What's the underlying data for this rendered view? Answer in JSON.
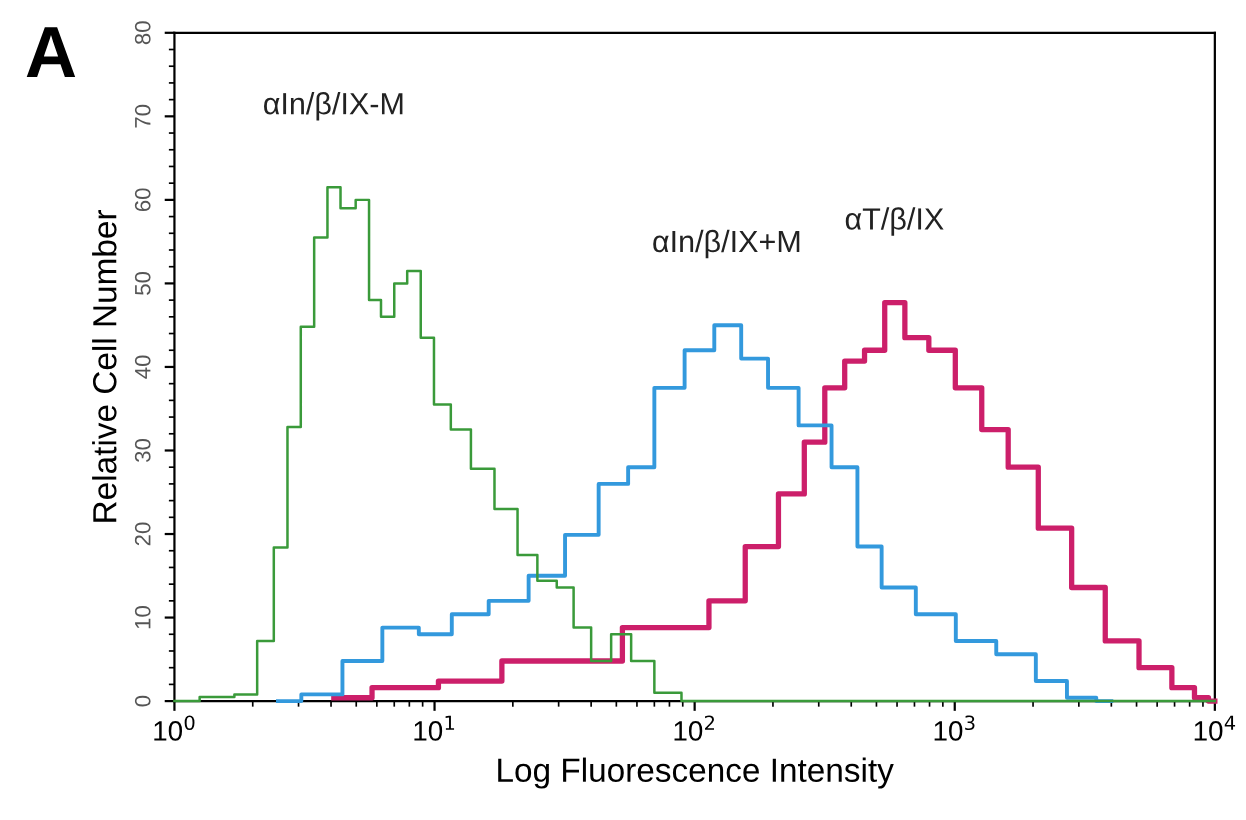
{
  "chart_data": {
    "type": "step",
    "title": "A",
    "xlabel": "Log Fluorescence Intensity",
    "ylabel": "Relative Cell Number",
    "log": "x",
    "xlim": [
      1,
      10000
    ],
    "xticks": [
      {
        "value": 1,
        "label": "10$^{0}$"
      },
      {
        "value": 10,
        "label": "10$^{1}$"
      },
      {
        "value": 100,
        "label": "10$^{2}$"
      },
      {
        "value": 1000,
        "label": "10$^{3}$"
      },
      {
        "value": 10000,
        "label": "10$^{4}$"
      }
    ],
    "ylim": [
      0,
      80
    ],
    "yticks": [
      0,
      10,
      20,
      30,
      40,
      50,
      60,
      70,
      80
    ],
    "grid": false,
    "legend": false,
    "series": [
      {
        "name": "αIn/β/IX-M",
        "color": "#3a9a3a",
        "x": [
          1,
          1.5,
          1.9,
          2.26,
          2.56,
          2.88,
          3.24,
          3.65,
          4.1,
          4.6,
          5.35,
          5.85,
          6.6,
          7.4,
          8.3,
          9.4,
          10.5,
          12.6,
          15,
          19,
          22.7,
          27,
          32,
          36.5,
          43.5,
          52,
          62,
          78,
          100,
          300,
          1000,
          10000
        ],
        "values": [
          0,
          0.5,
          0.8,
          7.2,
          18.4,
          32.8,
          44.8,
          55.5,
          61.5,
          59,
          60,
          48,
          46,
          50,
          51.5,
          43.5,
          35.5,
          32.5,
          27.8,
          23,
          17.5,
          14.4,
          13.6,
          8.8,
          4.8,
          8,
          4.8,
          1,
          0,
          0,
          0,
          0
        ]
      },
      {
        "name": "αIn/β/IX+M",
        "color": "#3399dd",
        "x": [
          2.5,
          3.65,
          5.2,
          7.4,
          10,
          13.3,
          19,
          27,
          36.5,
          49,
          62,
          78,
          105,
          133,
          169,
          214,
          288,
          384,
          461,
          586,
          831,
          1188,
          1700,
          2400,
          3000,
          4000
        ],
        "values": [
          0,
          0.8,
          4.8,
          8.8,
          8,
          10.4,
          12,
          15,
          19.9,
          26,
          28,
          37.5,
          42,
          45,
          41,
          37.5,
          33,
          28,
          18.5,
          13.6,
          10.4,
          7.2,
          5.6,
          2.4,
          0.4,
          0
        ]
      },
      {
        "name": "αT/β/IX",
        "color": "#cc1f6a",
        "x": [
          4.1,
          7.4,
          13.3,
          23,
          43.5,
          62,
          94,
          133,
          180,
          240,
          288,
          345,
          410,
          490,
          586,
          700,
          890,
          1120,
          1420,
          1790,
          2400,
          3230,
          4350,
          5870,
          7800,
          8900,
          10000
        ],
        "values": [
          0.4,
          1.6,
          2.4,
          4.8,
          4.8,
          8.8,
          8.8,
          12,
          18.5,
          24.8,
          31,
          37.5,
          40.7,
          42,
          47.7,
          43.5,
          42,
          37.5,
          32.5,
          28,
          20.7,
          13.6,
          7.2,
          4,
          1.6,
          0.4,
          0
        ]
      }
    ]
  }
}
